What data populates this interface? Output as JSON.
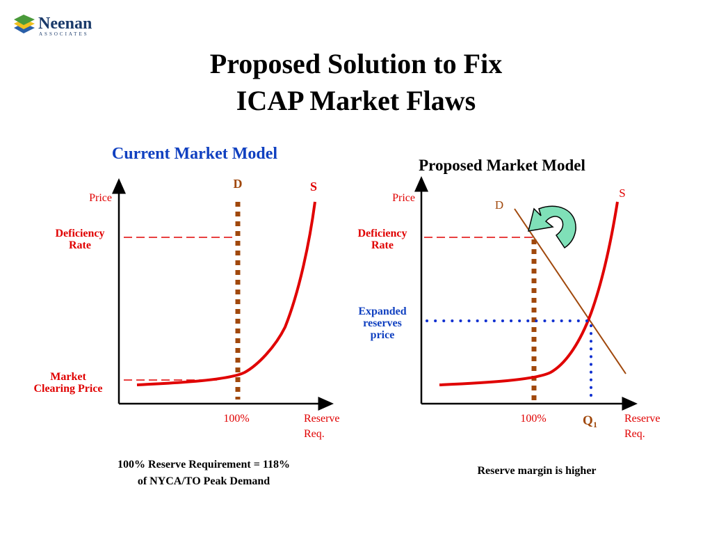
{
  "logo": {
    "name": "Neenan",
    "subtitle": "ASSOCIATES"
  },
  "header": {
    "title_lines": [
      "Proposed Solution to Fix",
      "ICAP Market Flaws"
    ]
  },
  "left_panel": {
    "title": "Current Market Model",
    "demand_label": "D",
    "supply_label": "S",
    "y_axis_label": "Price",
    "deficiency_label": [
      "Deficiency",
      "Rate"
    ],
    "market_label": [
      "Market",
      "Clearing Price"
    ],
    "x_mark_label": "100%",
    "x_axis_label": [
      "Reserve",
      "Req."
    ],
    "caption": [
      "100% Reserve Requirement = 118%",
      "of NYCA/TO Peak Demand"
    ]
  },
  "right_panel": {
    "title": "Proposed Market Model",
    "demand_label": "D",
    "supply_label": "S",
    "y_axis_label": "Price",
    "deficiency_label": [
      "Deficiency",
      "Rate"
    ],
    "expanded_label": [
      "Expanded",
      "reserves",
      "price"
    ],
    "x_mark_label": "100%",
    "q_label": "Q",
    "q_subscript": "1",
    "x_axis_label": [
      "Reserve",
      "Req."
    ],
    "caption": "Reserve margin is higher"
  }
}
